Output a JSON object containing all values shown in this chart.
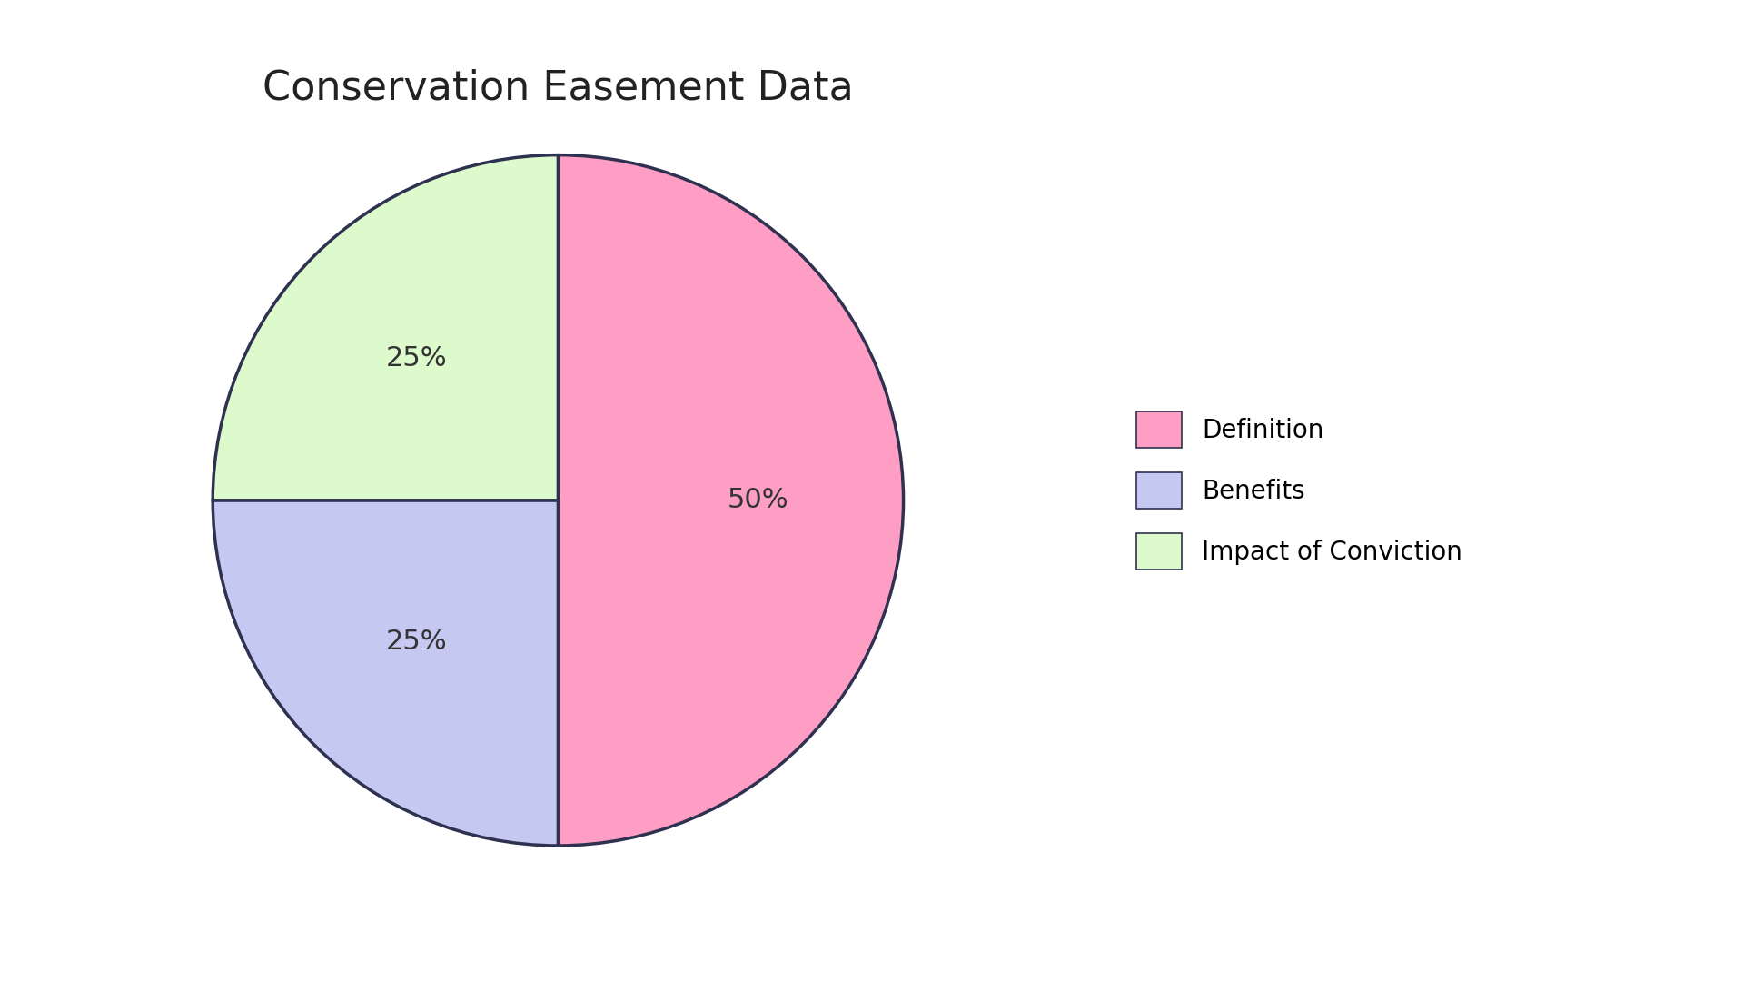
{
  "title": "Conservation Easement Data",
  "labels": [
    "Definition",
    "Benefits",
    "Impact of Conviction"
  ],
  "values": [
    50,
    25,
    25
  ],
  "colors": [
    "#FF9EC4",
    "#C5C8F0",
    "#DDFACC"
  ],
  "edge_color": "#2E3250",
  "edge_width": 2.5,
  "pct_labels": [
    "50%",
    "25%",
    "25%"
  ],
  "startangle": 90,
  "background_color": "#FFFFFF",
  "title_fontsize": 32,
  "pct_fontsize": 22,
  "legend_fontsize": 20
}
